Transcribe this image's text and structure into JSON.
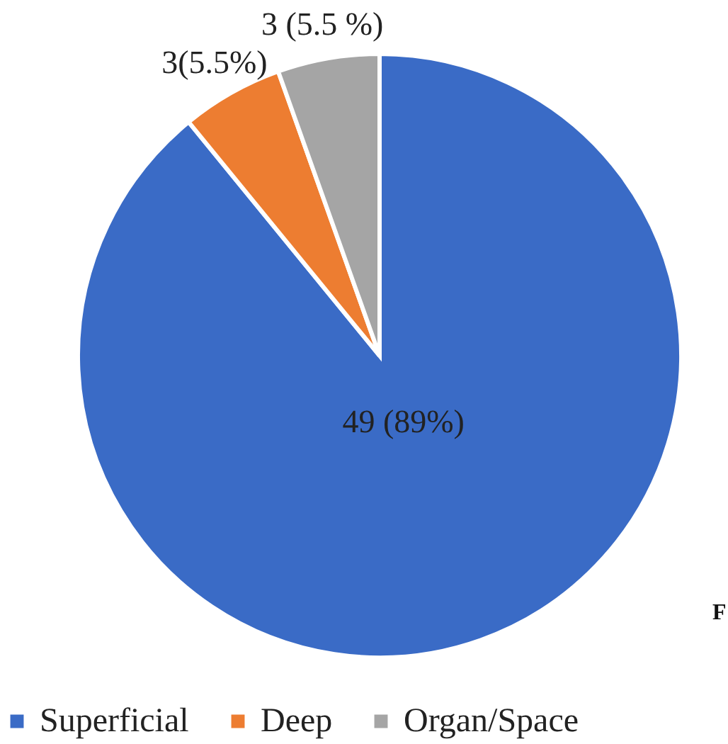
{
  "chart_data": {
    "type": "pie",
    "categories": [
      "Superficial",
      "Deep",
      "Organ/Space"
    ],
    "values": [
      49,
      3,
      3
    ],
    "colors": [
      "#3a6bc6",
      "#ed7d31",
      "#a5a5a5"
    ],
    "value_labels": [
      "49 (89%)",
      "3(5.5%)",
      "3 (5.5 %)"
    ],
    "legend": "bottom",
    "annotations": [
      "F"
    ]
  }
}
